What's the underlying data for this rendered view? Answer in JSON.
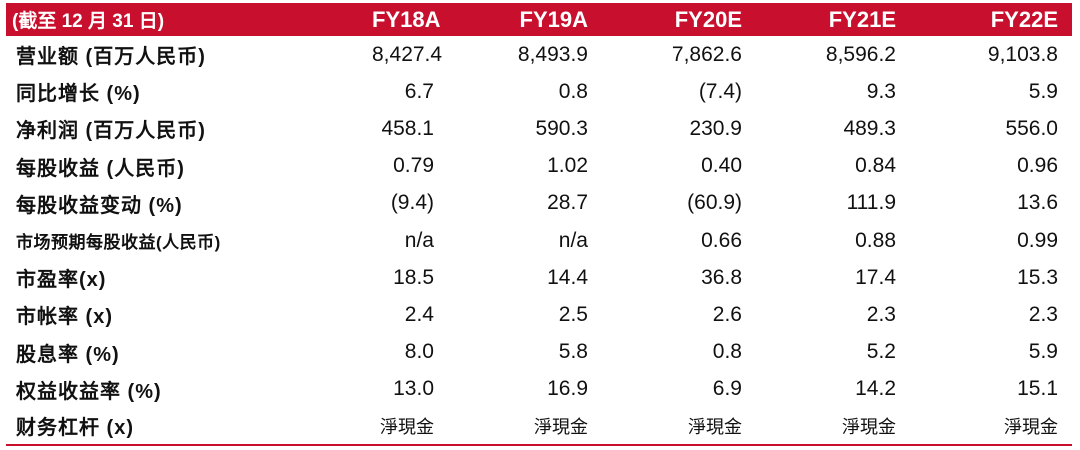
{
  "header": {
    "label": "(截至 12 月 31 日)",
    "years": [
      "FY18A",
      "FY19A",
      "FY20E",
      "FY21E",
      "FY22E"
    ]
  },
  "rows": [
    {
      "label": "营业额 (百万人民币)",
      "values": [
        "8,427.4",
        "8,493.9",
        "7,862.6",
        "8,596.2",
        "9,103.8"
      ]
    },
    {
      "label": "同比增长 (%)",
      "values": [
        "6.7",
        "0.8",
        "(7.4)",
        "9.3",
        "5.9"
      ]
    },
    {
      "label": "净利润 (百万人民币)",
      "values": [
        "458.1",
        "590.3",
        "230.9",
        "489.3",
        "556.0"
      ]
    },
    {
      "label": "每股收益 (人民币)",
      "values": [
        "0.79",
        "1.02",
        "0.40",
        "0.84",
        "0.96"
      ]
    },
    {
      "label": "每股收益变动 (%)",
      "values": [
        "(9.4)",
        "28.7",
        "(60.9)",
        "111.9",
        "13.6"
      ]
    },
    {
      "label": "市场预期每股收益(人民币)",
      "values": [
        "n/a",
        "n/a",
        "0.66",
        "0.88",
        "0.99"
      ]
    },
    {
      "label": "市盈率(x)",
      "values": [
        "18.5",
        "14.4",
        "36.8",
        "17.4",
        "15.3"
      ]
    },
    {
      "label": "市帐率 (x)",
      "values": [
        "2.4",
        "2.5",
        "2.6",
        "2.3",
        "2.3"
      ]
    },
    {
      "label": "股息率 (%)",
      "values": [
        "8.0",
        "5.8",
        "0.8",
        "5.2",
        "5.9"
      ]
    },
    {
      "label": "权益收益率 (%)",
      "values": [
        "13.0",
        "16.9",
        "6.9",
        "14.2",
        "15.1"
      ]
    },
    {
      "label": "财务杠杆 (x)",
      "values": [
        "淨現金",
        "淨現金",
        "淨現金",
        "淨現金",
        "淨現金"
      ]
    }
  ],
  "colors": {
    "header_bg": "#c8102e",
    "header_text": "#ffffff",
    "body_text": "#111111"
  }
}
